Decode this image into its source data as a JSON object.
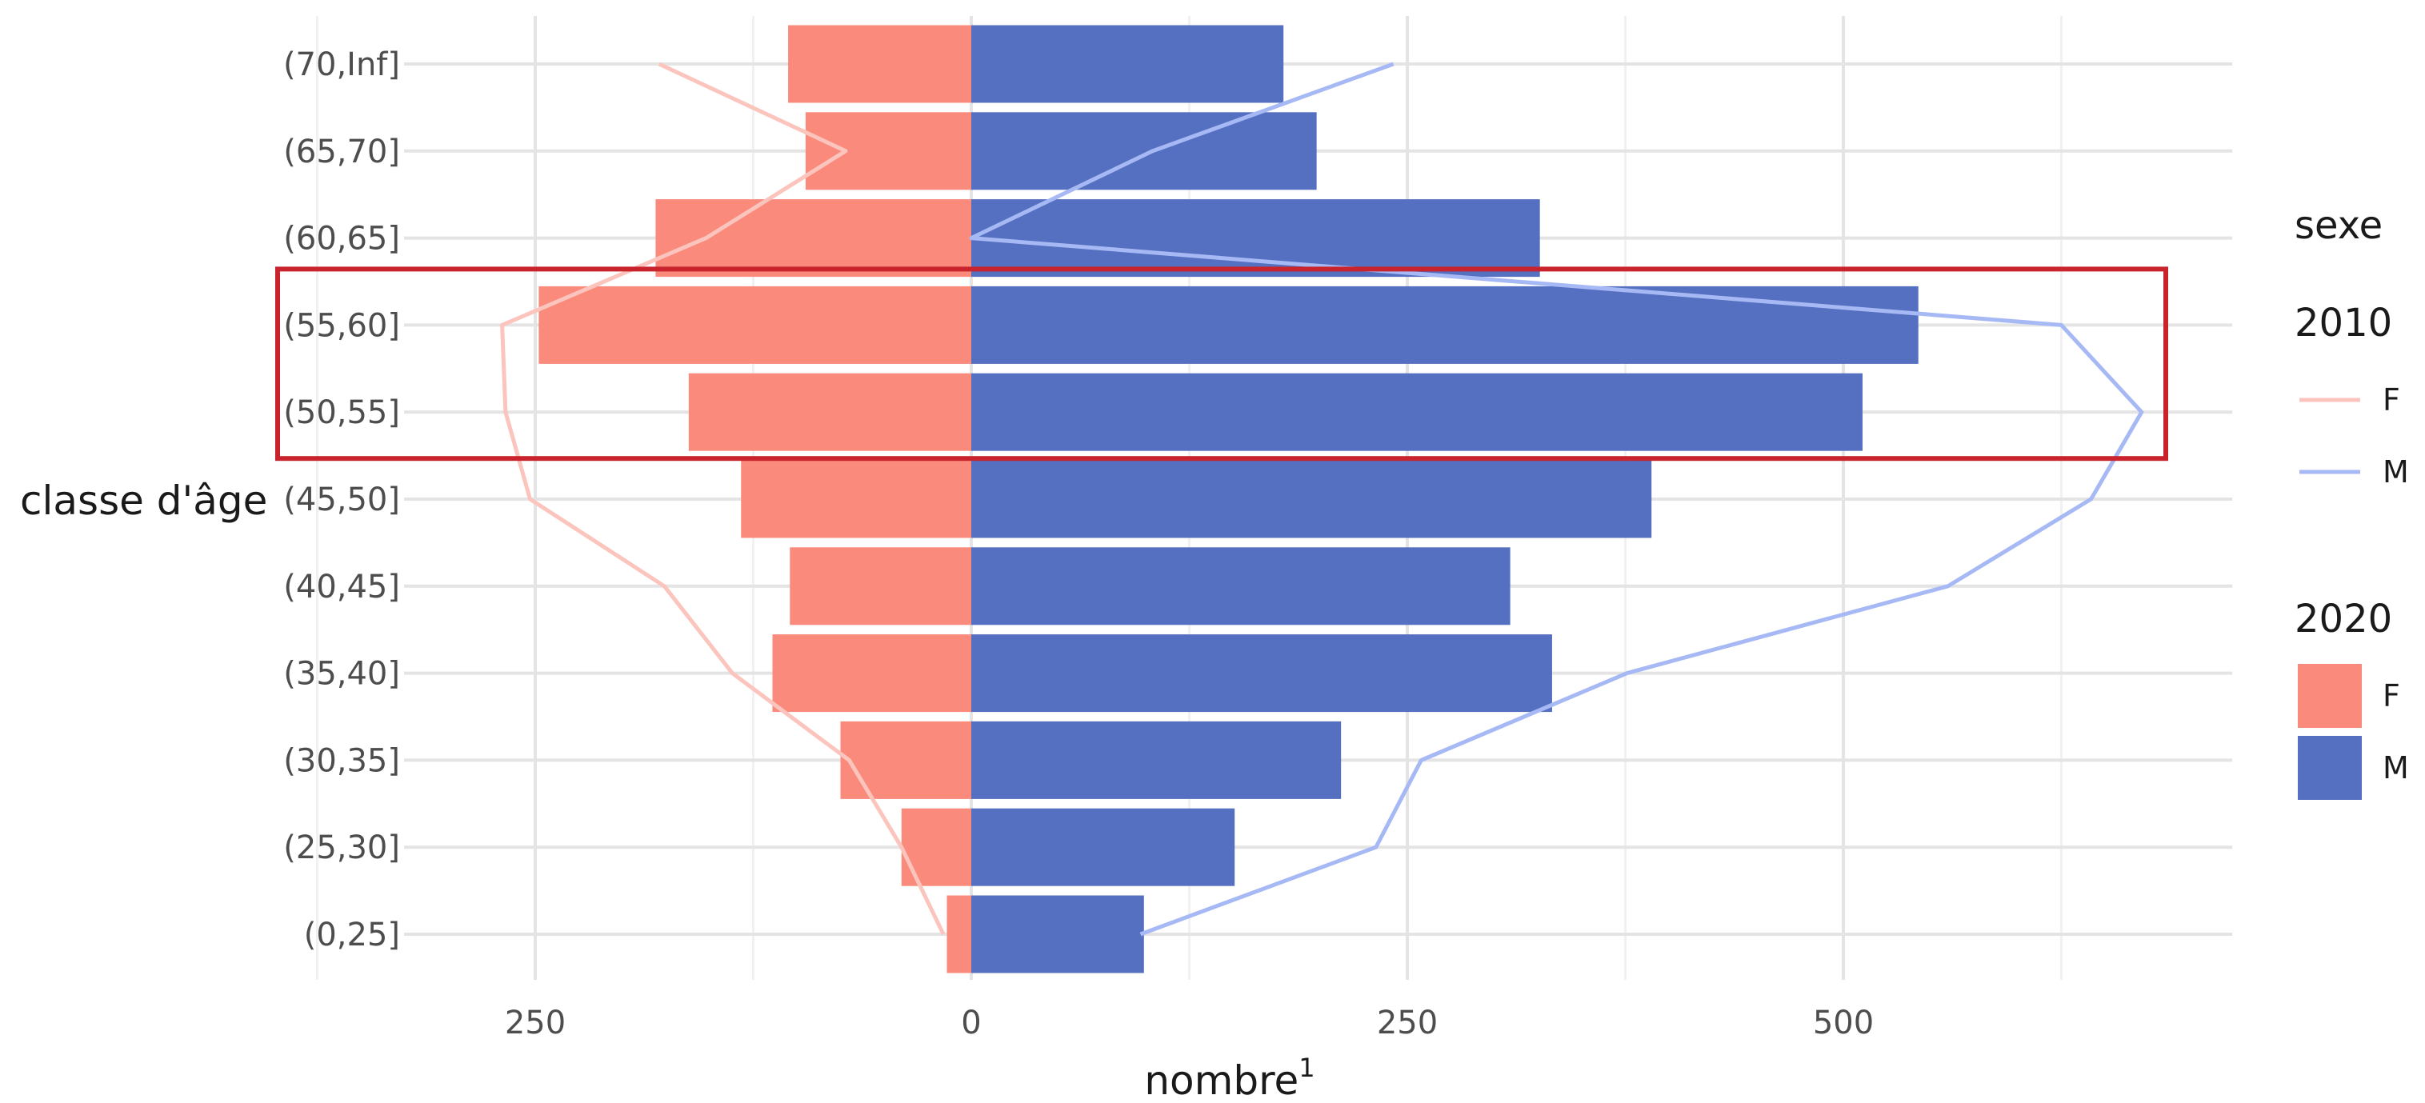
{
  "chart_data": {
    "type": "bar",
    "orientation": "horizontal",
    "ylabel": "classe d'âge",
    "xlabel": "nombre",
    "xlabel_superscript": "1",
    "categories": [
      "(0,25]",
      "(25,30]",
      "(30,35]",
      "(35,40]",
      "(40,45]",
      "(45,50]",
      "(50,55]",
      "(55,60]",
      "(60,65]",
      "(65,70]",
      "(70,Inf]"
    ],
    "x_ticks": [
      {
        "value": -250,
        "label": "250"
      },
      {
        "value": 0,
        "label": "0"
      },
      {
        "value": 250,
        "label": "250"
      },
      {
        "value": 500,
        "label": "500"
      }
    ],
    "xlim": [
      -320,
      720
    ],
    "grid": true,
    "series": [
      {
        "name": "F",
        "group": "2020",
        "kind": "bar",
        "side": "left",
        "color": "#fa8b7c",
        "values": [
          14,
          40,
          75,
          114,
          104,
          132,
          162,
          248,
          181,
          95,
          105
        ]
      },
      {
        "name": "M",
        "group": "2020",
        "kind": "bar",
        "side": "right",
        "color": "#5570c0",
        "values": [
          99,
          151,
          212,
          333,
          309,
          390,
          511,
          543,
          326,
          198,
          179
        ]
      },
      {
        "name": "F",
        "group": "2010",
        "kind": "line",
        "side": "left",
        "color": "#fbc4bd",
        "values": [
          16,
          40,
          70,
          137,
          176,
          253,
          267,
          269,
          152,
          72,
          179
        ]
      },
      {
        "name": "M",
        "group": "2010",
        "kind": "line",
        "side": "right",
        "color": "#a7b9f5",
        "values": [
          97,
          232,
          258,
          376,
          560,
          642,
          671,
          625,
          0,
          104,
          242
        ]
      }
    ],
    "highlight": {
      "categories": [
        "(50,55]",
        "(55,60]"
      ],
      "color": "#c9242d"
    },
    "legend": {
      "title": "sexe",
      "placement": "right",
      "groups": [
        {
          "title": "2010",
          "kind": "line",
          "items": [
            {
              "label": "F",
              "color": "#fbc4bd"
            },
            {
              "label": "M",
              "color": "#a7b9f5"
            }
          ]
        },
        {
          "title": "2020",
          "kind": "bar",
          "items": [
            {
              "label": "F",
              "color": "#fa8b7c"
            },
            {
              "label": "M",
              "color": "#5570c0"
            }
          ]
        }
      ]
    }
  }
}
